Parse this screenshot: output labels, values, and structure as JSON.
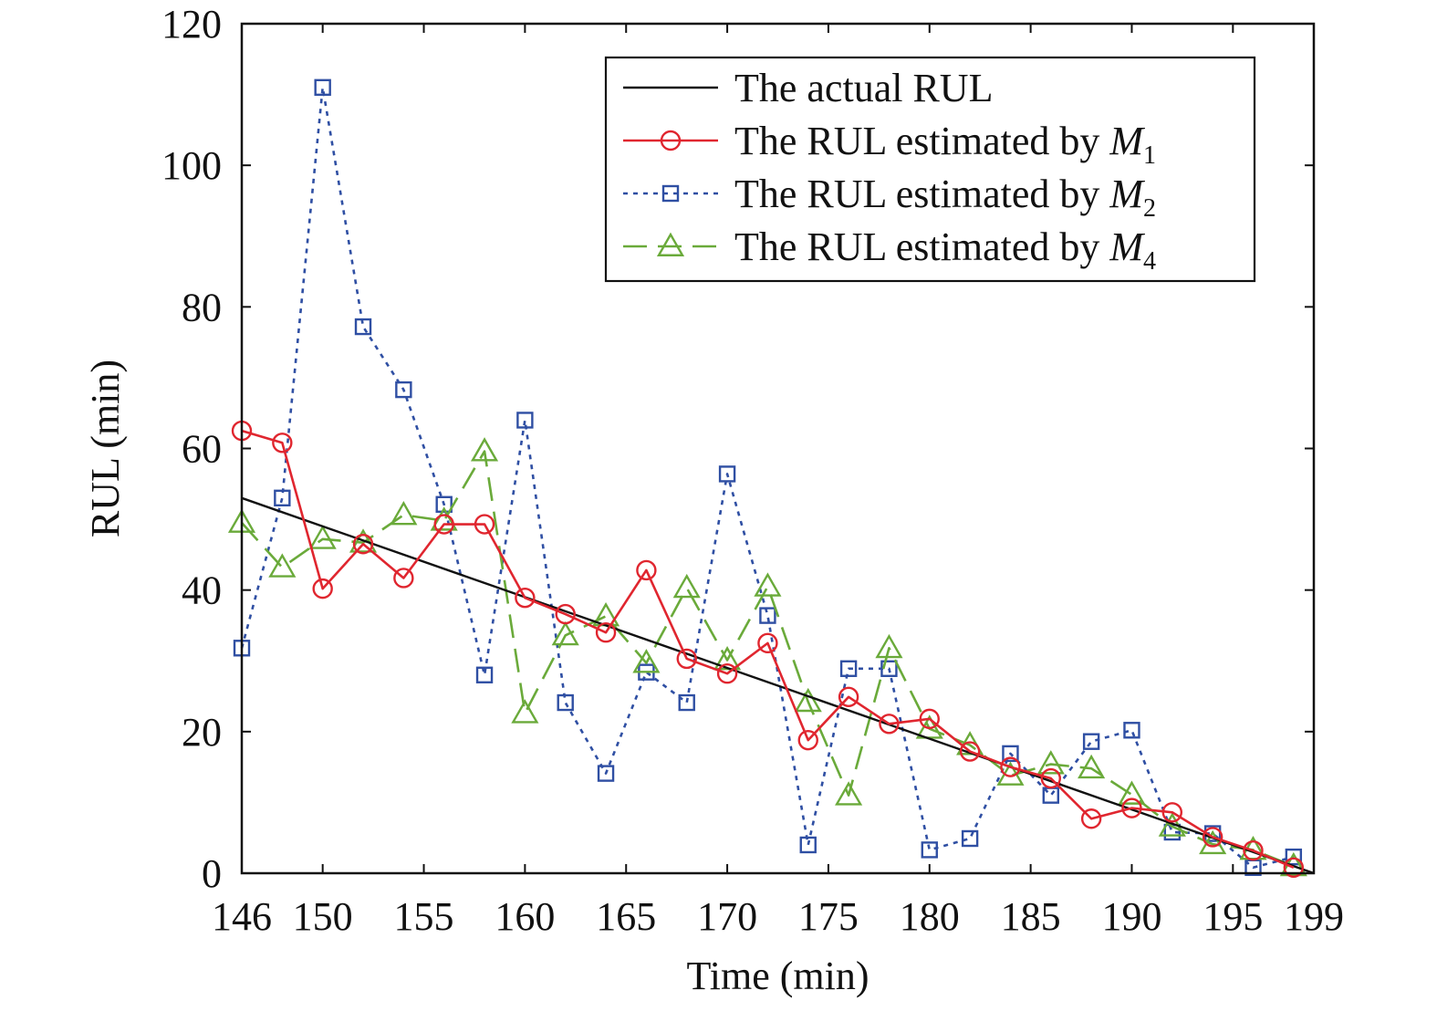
{
  "chart_data": {
    "type": "line",
    "xlabel": "Time (min)",
    "ylabel": "RUL (min)",
    "xlim": [
      146,
      199
    ],
    "ylim": [
      0,
      120
    ],
    "xticks": [
      146,
      150,
      155,
      160,
      165,
      170,
      175,
      180,
      185,
      190,
      195,
      199
    ],
    "yticks": [
      0,
      20,
      40,
      60,
      80,
      100,
      120
    ],
    "grid": false,
    "legend_position": "top-right",
    "series": [
      {
        "name": "The actual RUL",
        "name_prefix": "The actual RUL",
        "name_var": "",
        "name_sub": "",
        "color": "#111111",
        "marker": "none",
        "dash": "solid",
        "x": [
          146,
          199
        ],
        "y": [
          53,
          0
        ]
      },
      {
        "name": "The RUL estimated by M1",
        "name_prefix": "The RUL estimated by ",
        "name_var": "M",
        "name_sub": "1",
        "color": "#e0262f",
        "marker": "circle",
        "dash": "solid",
        "x": [
          146,
          148,
          150,
          152,
          154,
          156,
          158,
          160,
          162,
          164,
          166,
          168,
          170,
          172,
          174,
          176,
          178,
          180,
          182,
          184,
          186,
          188,
          190,
          192,
          194,
          196,
          198
        ],
        "y": [
          62.5,
          60.8,
          40.2,
          46.5,
          41.7,
          49.3,
          49.3,
          38.9,
          36.6,
          34.0,
          42.8,
          30.3,
          28.2,
          32.5,
          18.8,
          24.9,
          21.1,
          21.8,
          17.2,
          15.0,
          13.4,
          7.7,
          9.2,
          8.6,
          5.1,
          3.2,
          0.8
        ]
      },
      {
        "name": "The RUL estimated by M2",
        "name_prefix": "The RUL estimated by ",
        "name_var": "M",
        "name_sub": "2",
        "color": "#2f4fa3",
        "marker": "square",
        "dash": "dotted",
        "x": [
          146,
          148,
          150,
          152,
          154,
          156,
          158,
          160,
          162,
          164,
          166,
          168,
          170,
          172,
          174,
          176,
          178,
          180,
          182,
          184,
          186,
          188,
          190,
          192,
          194,
          196,
          198
        ],
        "y": [
          31.8,
          53.0,
          111.0,
          77.2,
          68.3,
          52.1,
          28.0,
          64.0,
          24.1,
          14.1,
          28.4,
          24.1,
          56.4,
          36.4,
          4.0,
          28.9,
          28.9,
          3.3,
          4.9,
          16.9,
          11.0,
          18.6,
          20.2,
          5.8,
          5.6,
          0.8,
          2.3
        ]
      },
      {
        "name": "The RUL estimated by M4",
        "name_prefix": "The RUL estimated by ",
        "name_var": "M",
        "name_sub": "4",
        "color": "#6aaa3a",
        "marker": "triangle",
        "dash": "dashed",
        "x": [
          146,
          148,
          150,
          152,
          154,
          156,
          158,
          160,
          162,
          164,
          166,
          168,
          170,
          172,
          174,
          176,
          178,
          180,
          182,
          184,
          186,
          188,
          190,
          192,
          194,
          196,
          198
        ],
        "y": [
          49.5,
          43.2,
          47.2,
          46.7,
          50.6,
          49.8,
          59.6,
          22.6,
          33.6,
          36.3,
          29.7,
          40.3,
          30.1,
          40.5,
          24.2,
          11.0,
          31.8,
          20.4,
          18.1,
          13.8,
          15.4,
          14.8,
          11.1,
          6.6,
          4.1,
          3.3,
          1.0
        ]
      }
    ]
  }
}
